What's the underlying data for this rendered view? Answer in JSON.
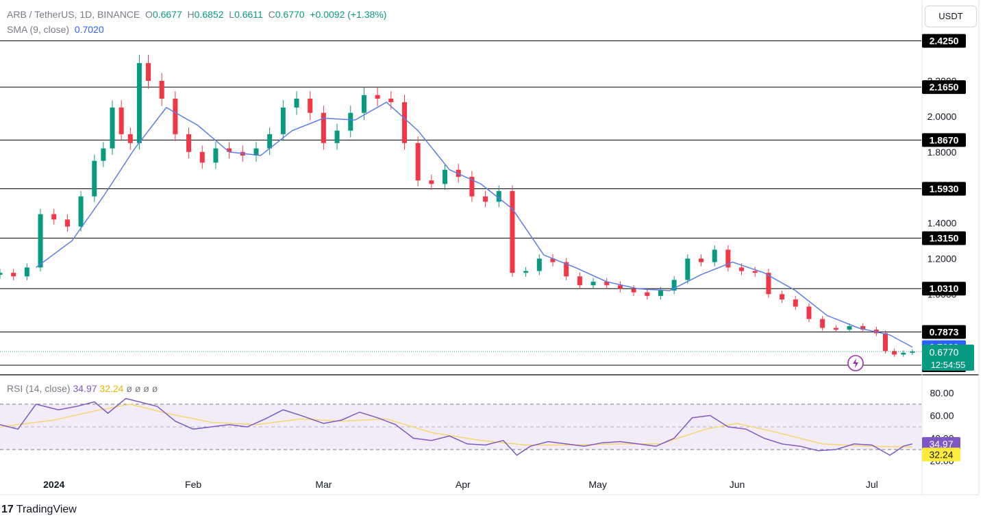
{
  "header": {
    "symbol": "ARB / TetherUS, 1D, BINANCE",
    "open_label": "O",
    "open": "0.6677",
    "high_label": "H",
    "high": "0.6852",
    "low_label": "L",
    "low": "0.6611",
    "close_label": "C",
    "close": "0.6770",
    "change": "+0.0092 (+1.38%)",
    "sma_label": "SMA (9, close)",
    "sma_value": "0.7020"
  },
  "currency_button": "USDT",
  "rsi_header": {
    "label": "RSI (14, close)",
    "rsi": "34.97",
    "ma": "32.24",
    "extra": [
      "ø",
      "ø",
      "ø",
      "ø"
    ]
  },
  "footer": {
    "logo": "17",
    "brand": "TradingView"
  },
  "colors": {
    "up": "#089981",
    "down": "#f23645",
    "sma": "#5b7ee5",
    "rsi": "#7e57c2",
    "rsi_ma": "#f5d76e",
    "rsi_band": "#ede7f6"
  },
  "chart_data": [
    {
      "type": "candlestick",
      "title": "ARB / TetherUS, 1D, BINANCE",
      "y_ticks": [
        "2.2000",
        "2.0000",
        "1.8000",
        "1.4000",
        "1.2000",
        "1.0000"
      ],
      "x_ticks": [
        "2024",
        "Feb",
        "Mar",
        "Apr",
        "May",
        "Jun",
        "Jul"
      ],
      "x_tick_dates": [
        "2024-01-01",
        "2024-02-01",
        "2024-03-01",
        "2024-04-01",
        "2024-05-01",
        "2024-06-01",
        "2024-07-01"
      ],
      "x_range": [
        "2023-12-20",
        "2024-07-12"
      ],
      "ylim": [
        0.55,
        2.47
      ],
      "grid": false,
      "levels": [
        "2.4250",
        "2.1650",
        "1.8670",
        "1.5930",
        "1.3150",
        "1.0310",
        "0.7873",
        "0.6000"
      ],
      "sma_label": "0.7020",
      "last_price_label": "0.6770",
      "countdown": "12:54:55",
      "closes": [
        [
          "2023-12-20",
          1.12
        ],
        [
          "2023-12-23",
          1.1
        ],
        [
          "2023-12-26",
          1.15
        ],
        [
          "2023-12-29",
          1.45
        ],
        [
          "2024-01-01",
          1.42
        ],
        [
          "2024-01-04",
          1.38
        ],
        [
          "2024-01-07",
          1.55
        ],
        [
          "2024-01-10",
          1.75
        ],
        [
          "2024-01-12",
          1.82
        ],
        [
          "2024-01-14",
          2.05
        ],
        [
          "2024-01-16",
          1.9
        ],
        [
          "2024-01-18",
          1.85
        ],
        [
          "2024-01-20",
          2.3
        ],
        [
          "2024-01-22",
          2.2
        ],
        [
          "2024-01-25",
          2.1
        ],
        [
          "2024-01-28",
          1.9
        ],
        [
          "2024-01-31",
          1.8
        ],
        [
          "2024-02-03",
          1.74
        ],
        [
          "2024-02-06",
          1.82
        ],
        [
          "2024-02-09",
          1.8
        ],
        [
          "2024-02-12",
          1.78
        ],
        [
          "2024-02-15",
          1.82
        ],
        [
          "2024-02-18",
          1.9
        ],
        [
          "2024-02-21",
          2.05
        ],
        [
          "2024-02-24",
          2.1
        ],
        [
          "2024-02-27",
          2.02
        ],
        [
          "2024-03-01",
          1.85
        ],
        [
          "2024-03-04",
          1.92
        ],
        [
          "2024-03-07",
          2.02
        ],
        [
          "2024-03-10",
          2.12
        ],
        [
          "2024-03-13",
          2.1
        ],
        [
          "2024-03-16",
          2.08
        ],
        [
          "2024-03-19",
          1.85
        ],
        [
          "2024-03-22",
          1.64
        ],
        [
          "2024-03-25",
          1.62
        ],
        [
          "2024-03-28",
          1.7
        ],
        [
          "2024-03-31",
          1.66
        ],
        [
          "2024-04-03",
          1.55
        ],
        [
          "2024-04-06",
          1.52
        ],
        [
          "2024-04-09",
          1.58
        ],
        [
          "2024-04-12",
          1.12
        ],
        [
          "2024-04-15",
          1.13
        ],
        [
          "2024-04-18",
          1.2
        ],
        [
          "2024-04-21",
          1.18
        ],
        [
          "2024-04-24",
          1.1
        ],
        [
          "2024-04-27",
          1.05
        ],
        [
          "2024-04-30",
          1.07
        ],
        [
          "2024-05-03",
          1.05
        ],
        [
          "2024-05-06",
          1.03
        ],
        [
          "2024-05-09",
          1.01
        ],
        [
          "2024-05-12",
          0.99
        ],
        [
          "2024-05-15",
          1.02
        ],
        [
          "2024-05-18",
          1.08
        ],
        [
          "2024-05-21",
          1.2
        ],
        [
          "2024-05-24",
          1.18
        ],
        [
          "2024-05-27",
          1.25
        ],
        [
          "2024-05-30",
          1.15
        ],
        [
          "2024-06-02",
          1.13
        ],
        [
          "2024-06-05",
          1.12
        ],
        [
          "2024-06-08",
          1.0
        ],
        [
          "2024-06-11",
          0.97
        ],
        [
          "2024-06-14",
          0.93
        ],
        [
          "2024-06-17",
          0.86
        ],
        [
          "2024-06-20",
          0.81
        ],
        [
          "2024-06-23",
          0.8
        ],
        [
          "2024-06-26",
          0.82
        ],
        [
          "2024-06-29",
          0.8
        ],
        [
          "2024-07-02",
          0.78
        ],
        [
          "2024-07-04",
          0.68
        ],
        [
          "2024-07-06",
          0.66
        ],
        [
          "2024-07-08",
          0.67
        ],
        [
          "2024-07-10",
          0.677
        ]
      ],
      "sma_9": [
        [
          "2023-12-28",
          1.15
        ],
        [
          "2024-01-05",
          1.3
        ],
        [
          "2024-01-12",
          1.55
        ],
        [
          "2024-01-19",
          1.82
        ],
        [
          "2024-01-26",
          2.05
        ],
        [
          "2024-02-02",
          1.95
        ],
        [
          "2024-02-09",
          1.8
        ],
        [
          "2024-02-16",
          1.78
        ],
        [
          "2024-02-23",
          1.92
        ],
        [
          "2024-03-01",
          1.99
        ],
        [
          "2024-03-08",
          1.98
        ],
        [
          "2024-03-15",
          2.08
        ],
        [
          "2024-03-22",
          1.92
        ],
        [
          "2024-03-29",
          1.7
        ],
        [
          "2024-04-05",
          1.62
        ],
        [
          "2024-04-12",
          1.48
        ],
        [
          "2024-04-19",
          1.22
        ],
        [
          "2024-04-26",
          1.15
        ],
        [
          "2024-05-03",
          1.07
        ],
        [
          "2024-05-10",
          1.03
        ],
        [
          "2024-05-17",
          1.02
        ],
        [
          "2024-05-24",
          1.11
        ],
        [
          "2024-05-31",
          1.18
        ],
        [
          "2024-06-07",
          1.12
        ],
        [
          "2024-06-14",
          1.02
        ],
        [
          "2024-06-21",
          0.88
        ],
        [
          "2024-06-28",
          0.81
        ],
        [
          "2024-07-05",
          0.77
        ],
        [
          "2024-07-10",
          0.702
        ]
      ]
    },
    {
      "type": "line",
      "title": "RSI (14, close)",
      "y_ticks": [
        "80.00",
        "60.00",
        "40.00",
        "20.00"
      ],
      "ylim": [
        15,
        85
      ],
      "band": [
        30,
        70
      ],
      "mid": 50,
      "rsi_label": "34.97",
      "ma_label": "32.24",
      "series": [
        {
          "name": "RSI",
          "values": [
            [
              "2023-12-20",
              52
            ],
            [
              "2023-12-24",
              48
            ],
            [
              "2023-12-28",
              70
            ],
            [
              "2024-01-02",
              65
            ],
            [
              "2024-01-06",
              68
            ],
            [
              "2024-01-10",
              72
            ],
            [
              "2024-01-13",
              62
            ],
            [
              "2024-01-17",
              75
            ],
            [
              "2024-01-20",
              72
            ],
            [
              "2024-01-24",
              68
            ],
            [
              "2024-01-28",
              55
            ],
            [
              "2024-02-01",
              48
            ],
            [
              "2024-02-05",
              50
            ],
            [
              "2024-02-09",
              52
            ],
            [
              "2024-02-13",
              50
            ],
            [
              "2024-02-17",
              57
            ],
            [
              "2024-02-21",
              65
            ],
            [
              "2024-02-25",
              60
            ],
            [
              "2024-03-01",
              53
            ],
            [
              "2024-03-05",
              56
            ],
            [
              "2024-03-09",
              63
            ],
            [
              "2024-03-13",
              58
            ],
            [
              "2024-03-17",
              52
            ],
            [
              "2024-03-21",
              40
            ],
            [
              "2024-03-25",
              38
            ],
            [
              "2024-03-29",
              42
            ],
            [
              "2024-04-02",
              35
            ],
            [
              "2024-04-06",
              34
            ],
            [
              "2024-04-10",
              38
            ],
            [
              "2024-04-13",
              25
            ],
            [
              "2024-04-16",
              33
            ],
            [
              "2024-04-20",
              37
            ],
            [
              "2024-04-24",
              35
            ],
            [
              "2024-04-28",
              33
            ],
            [
              "2024-05-02",
              36
            ],
            [
              "2024-05-06",
              37
            ],
            [
              "2024-05-10",
              35
            ],
            [
              "2024-05-14",
              33
            ],
            [
              "2024-05-18",
              40
            ],
            [
              "2024-05-22",
              58
            ],
            [
              "2024-05-26",
              60
            ],
            [
              "2024-05-30",
              50
            ],
            [
              "2024-06-03",
              48
            ],
            [
              "2024-06-07",
              40
            ],
            [
              "2024-06-11",
              35
            ],
            [
              "2024-06-15",
              33
            ],
            [
              "2024-06-19",
              29
            ],
            [
              "2024-06-23",
              30
            ],
            [
              "2024-06-27",
              35
            ],
            [
              "2024-07-01",
              34
            ],
            [
              "2024-07-05",
              25
            ],
            [
              "2024-07-08",
              33
            ],
            [
              "2024-07-10",
              34.97
            ]
          ]
        },
        {
          "name": "RSI MA",
          "values": [
            [
              "2023-12-20",
              50
            ],
            [
              "2024-01-01",
              56
            ],
            [
              "2024-01-10",
              64
            ],
            [
              "2024-01-18",
              70
            ],
            [
              "2024-01-26",
              62
            ],
            [
              "2024-02-05",
              54
            ],
            [
              "2024-02-15",
              52
            ],
            [
              "2024-02-25",
              57
            ],
            [
              "2024-03-05",
              55
            ],
            [
              "2024-03-15",
              57
            ],
            [
              "2024-03-25",
              45
            ],
            [
              "2024-04-05",
              38
            ],
            [
              "2024-04-15",
              34
            ],
            [
              "2024-04-25",
              34
            ],
            [
              "2024-05-05",
              35
            ],
            [
              "2024-05-15",
              35
            ],
            [
              "2024-05-25",
              48
            ],
            [
              "2024-06-01",
              53
            ],
            [
              "2024-06-10",
              45
            ],
            [
              "2024-06-20",
              35
            ],
            [
              "2024-06-30",
              33
            ],
            [
              "2024-07-10",
              32.24
            ]
          ]
        }
      ]
    }
  ]
}
